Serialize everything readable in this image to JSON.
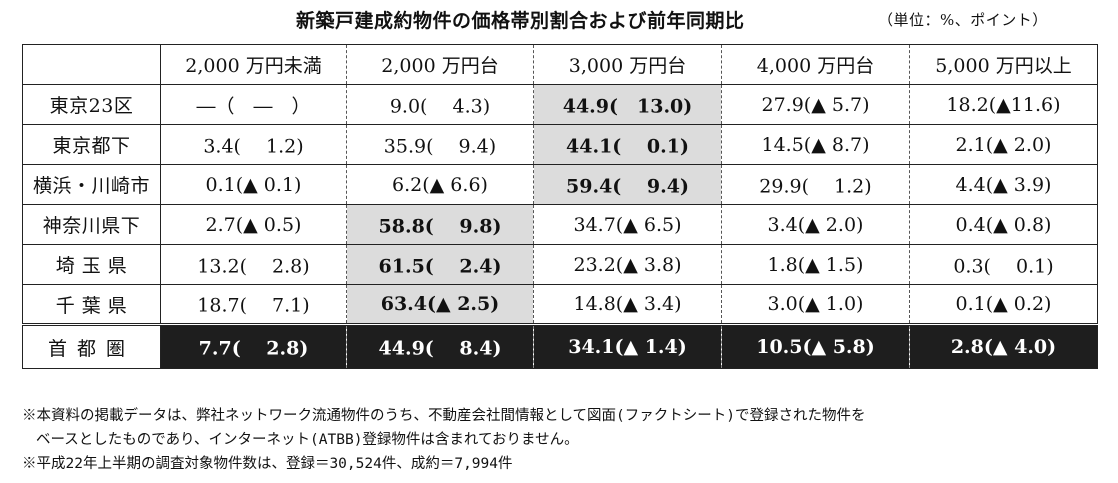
{
  "title": "新築戸建成約物件の価格帯別割合および前年同期比",
  "unit": "（単位：%、ポイント）",
  "columns": [
    "2,000 万円未満",
    "2,000 万円台",
    "3,000 万円台",
    "4,000 万円台",
    "5,000 万円以上"
  ],
  "rows": [
    {
      "label": "東京23区",
      "cells": [
        "―（　―　）",
        "9.0(　 4.3)",
        "44.9(　13.0)",
        "27.9(▲ 5.7)",
        "18.2(▲11.6)"
      ]
    },
    {
      "label": "東京都下",
      "cells": [
        "3.4(　 1.2)",
        "35.9(　 9.4)",
        "44.1(　 0.1)",
        "14.5(▲ 8.7)",
        "2.1(▲ 2.0)"
      ]
    },
    {
      "label": "横浜・川崎市",
      "cells": [
        "0.1(▲ 0.1)",
        "6.2(▲ 6.6)",
        "59.4(　 9.4)",
        "29.9(　 1.2)",
        "4.4(▲ 3.9)"
      ]
    },
    {
      "label": "神奈川県下",
      "cells": [
        "2.7(▲ 0.5)",
        "58.8(　 9.8)",
        "34.7(▲ 6.5)",
        "3.4(▲ 2.0)",
        "0.4(▲ 0.8)"
      ]
    },
    {
      "label": "埼 玉 県",
      "cells": [
        "13.2(　 2.8)",
        "61.5(　 2.4)",
        "23.2(▲ 3.8)",
        "1.8(▲ 1.5)",
        "0.3(　 0.1)"
      ]
    },
    {
      "label": "千 葉 県",
      "cells": [
        "18.7(　 7.1)",
        "63.4(▲ 2.5)",
        "14.8(▲ 3.4)",
        "3.0(▲ 1.0)",
        "0.1(▲ 0.2)"
      ]
    }
  ],
  "highlight": [
    [
      0,
      2
    ],
    [
      1,
      2
    ],
    [
      2,
      2
    ],
    [
      3,
      1
    ],
    [
      4,
      1
    ],
    [
      5,
      1
    ]
  ],
  "total": {
    "label": "首都圏",
    "cells": [
      "7.7(　 2.8)",
      "44.9(　 8.4)",
      "34.1(▲ 1.4)",
      "10.5(▲ 5.8)",
      "2.8(▲ 4.0)"
    ]
  },
  "notes": {
    "line1": "※本資料の掲載データは、弊社ネットワーク流通物件のうち、不動産会社間情報として図面(ファクトシート)で登録された物件を",
    "line2": "ベースとしたものであり、インターネット(ATBB)登録物件は含まれておりません。",
    "line3": "※平成22年上半期の調査対象物件数は、登録＝30,524件、成約＝7,994件"
  },
  "colors": {
    "highlight": "#dcdcdc",
    "total_bg": "#1e1e1e",
    "total_text": "#ffffff"
  }
}
